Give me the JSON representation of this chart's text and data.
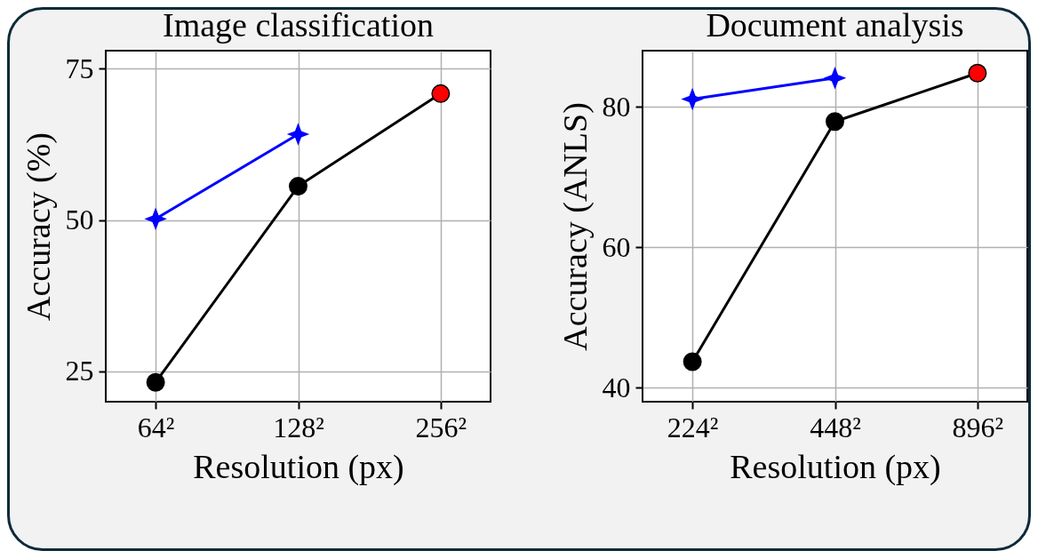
{
  "chart_data": [
    {
      "type": "line",
      "title": "Image classification",
      "xlabel": "Resolution (px)",
      "ylabel": "Accuracy (%)",
      "categories": [
        "64²",
        "128²",
        "256²"
      ],
      "ylim": [
        20,
        78
      ],
      "yticks": [
        25,
        50,
        75
      ],
      "grid": true,
      "series": [
        {
          "color": "#0000ff",
          "marker": "star",
          "values": [
            50.2,
            64.2,
            null
          ]
        },
        {
          "color": "#000000",
          "marker": "circle",
          "colors": [
            "#000000",
            "#000000",
            "#ff0000"
          ],
          "values": [
            23.2,
            55.6,
            70.9
          ]
        }
      ]
    },
    {
      "type": "line",
      "title": "Document analysis",
      "xlabel": "Resolution (px)",
      "ylabel": "Accuracy (ANLS)",
      "categories": [
        "224²",
        "448²",
        "896²"
      ],
      "ylim": [
        38,
        88
      ],
      "yticks": [
        40,
        60,
        80
      ],
      "grid": true,
      "series": [
        {
          "color": "#0000ff",
          "marker": "star",
          "values": [
            81.1,
            84.1,
            null
          ]
        },
        {
          "color": "#000000",
          "marker": "circle",
          "colors": [
            "#000000",
            "#000000",
            "#ff0000"
          ],
          "values": [
            43.7,
            77.9,
            84.8
          ]
        }
      ]
    }
  ]
}
